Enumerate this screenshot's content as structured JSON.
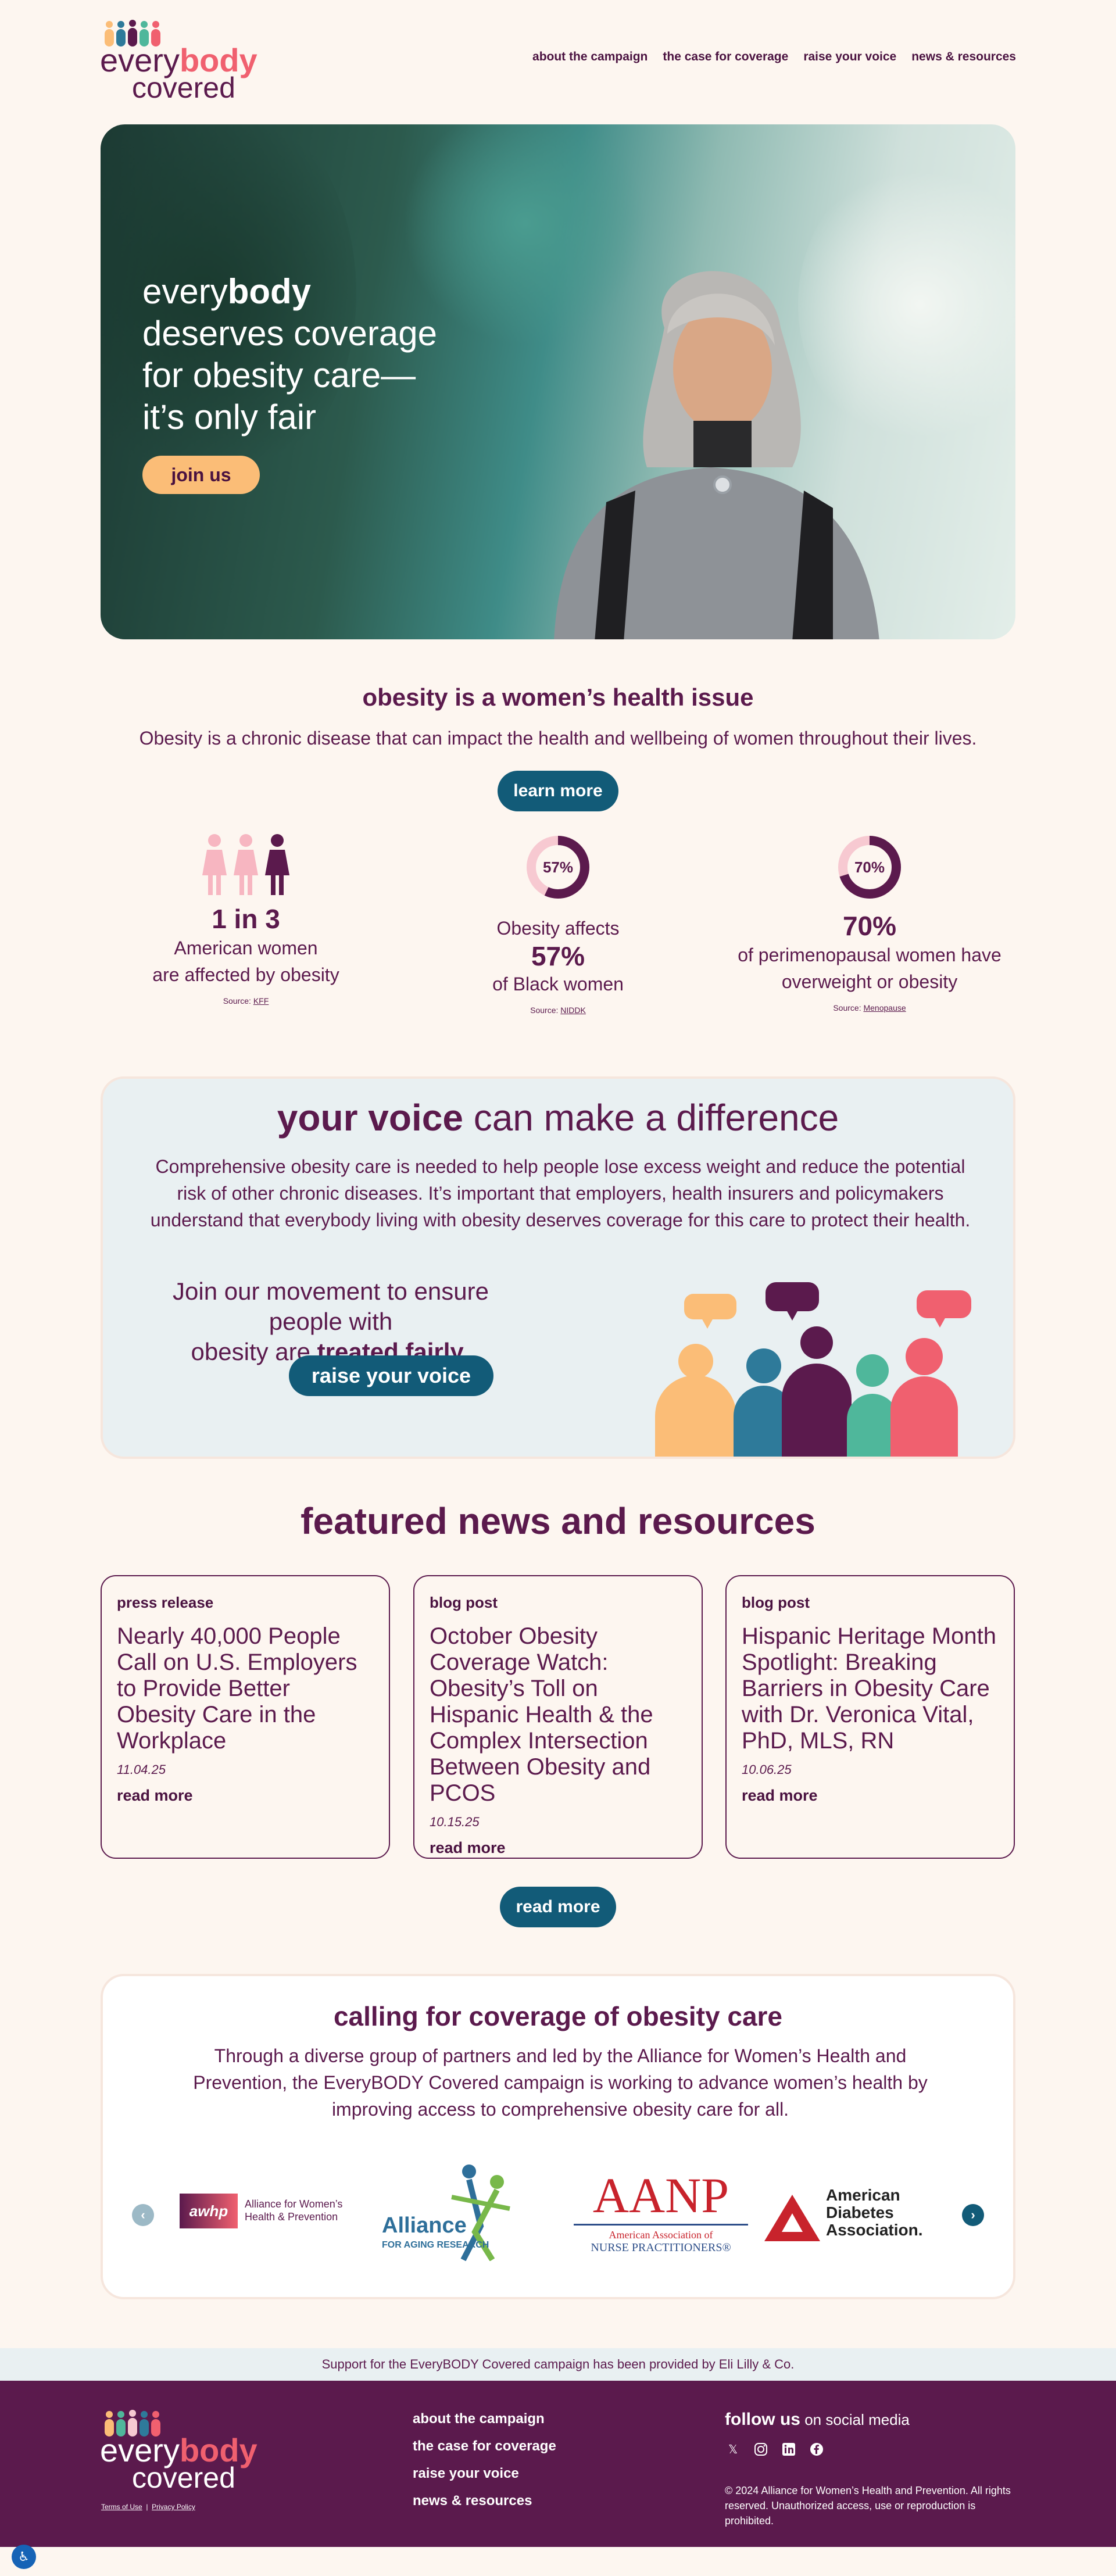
{
  "header": {
    "logo_every": "every",
    "logo_body": "body",
    "logo_covered": "covered",
    "nav": [
      "about the campaign",
      "the case for coverage",
      "raise your voice",
      "news & resources"
    ]
  },
  "hero": {
    "line1_a": "every",
    "line1_b": "body",
    "line2": "deserves coverage",
    "line3": "for obesity care—",
    "line4": "it’s only fair",
    "button": "join us"
  },
  "issue": {
    "title": "obesity is a women’s health issue",
    "subtitle": "Obesity is a chronic disease that can impact the health and wellbeing of women throughout their lives.",
    "button": "learn more",
    "stats": [
      {
        "big": "1 in 3",
        "text1": "American women",
        "text2": "are affected by obesity",
        "source_label": "Source:",
        "source": "KFF"
      },
      {
        "ring": "57%",
        "percent": 57,
        "text1": "Obesity affects",
        "big": "57%",
        "text2": "of Black women",
        "source_label": "Source:",
        "source": "NIDDK"
      },
      {
        "ring": "70%",
        "percent": 70,
        "big": "70%",
        "text1": "of perimenopausal women have",
        "text2": "overweight or obesity",
        "source_label": "Source:",
        "source": "Menopause"
      }
    ]
  },
  "voice": {
    "title_bold": "your voice",
    "title_rest": " can make a difference",
    "body": "Comprehensive obesity care is needed to help people lose excess weight and reduce the potential risk of other chronic diseases. It’s important that employers, health insurers and policymakers understand that everybody living with obesity deserves coverage for this care to protect their health.",
    "join_line1": "Join our movement to ensure people with",
    "join_line2_a": "obesity are ",
    "join_line2_b": "treated fairly",
    "join_line2_c": ".",
    "button": "raise your voice"
  },
  "news": {
    "title": "featured news and resources",
    "cards": [
      {
        "type": "press release",
        "headline": "Nearly 40,000 People Call on U.S. Employers to Provide Better Obesity Care in the Workplace",
        "date": "11.04.25",
        "more": "read more"
      },
      {
        "type": "blog post",
        "headline": "October Obesity Coverage Watch: Obesity’s Toll on Hispanic Health & the Complex Intersection Between Obesity and PCOS",
        "date": "10.15.25",
        "more": "read more"
      },
      {
        "type": "blog post",
        "headline": "Hispanic Heritage Month Spotlight: Breaking Barriers in Obesity Care with Dr. Veronica Vital, PhD, MLS, RN",
        "date": "10.06.25",
        "more": "read more"
      }
    ],
    "button": "read more"
  },
  "calling": {
    "title": "calling for coverage of obesity care",
    "body": "Through a diverse group of partners and led by the Alliance for Women’s Health and Prevention, the EveryBODY Covered campaign is working to advance women’s health by improving access to comprehensive obesity care for all.",
    "partners": [
      {
        "mark": "awhp",
        "name1": "Alliance for Women’s",
        "name2": "Health & Prevention"
      },
      {
        "name1": "Alliance",
        "name2": "FOR AGING RESEARCH"
      },
      {
        "mark": "AANP",
        "name1": "American Association of",
        "name2": "NURSE PRACTITIONERS®"
      },
      {
        "name1": "American",
        "name2": "Diabetes",
        "name3": "Association."
      }
    ]
  },
  "support": "Support for the EveryBODY Covered campaign has been provided by Eli Lilly & Co.",
  "footer": {
    "links": [
      "about the campaign",
      "the case for coverage",
      "raise your voice",
      "news & resources"
    ],
    "terms": "Terms of Use",
    "privacy": "Privacy Policy",
    "follow_bold": "follow us",
    "follow_rest": " on social media",
    "copyright": "© 2024 Alliance for Women’s Health and Prevention. All rights reserved. Unauthorized access, use or reproduction is prohibited."
  },
  "colors": {
    "plum": "#5b1a4d",
    "coral": "#f0606f",
    "teal": "#125b78",
    "orange": "#fbbd77",
    "green": "#4fb79b",
    "blue": "#2e7a9a",
    "cream": "#fdf6f0"
  }
}
